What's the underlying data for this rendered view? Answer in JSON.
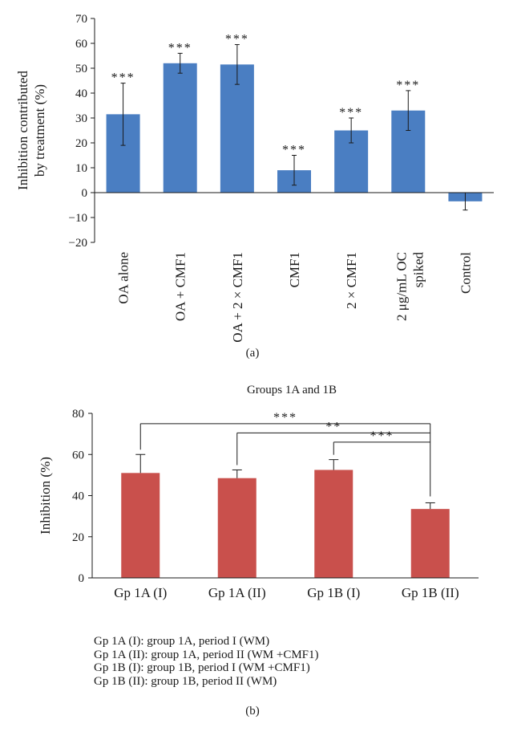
{
  "chart_data": [
    {
      "type": "bar",
      "panel_label": "(a)",
      "ylabel_lines": [
        "Inhibition contributed",
        "by treatment (%)"
      ],
      "ylim": [
        -20,
        70
      ],
      "yticks": [
        -20,
        -10,
        0,
        10,
        20,
        30,
        40,
        50,
        60,
        70
      ],
      "categories": [
        [
          "OA alone"
        ],
        [
          "OA + CMF1"
        ],
        [
          "OA + 2 × CMF1"
        ],
        [
          "CMF1"
        ],
        [
          "2 × CMF1"
        ],
        [
          "2 μg/mL OC",
          "spiked"
        ],
        [
          "Control"
        ]
      ],
      "values": [
        31.5,
        52,
        51.5,
        9,
        25,
        33,
        -3.5
      ],
      "errors": [
        12.5,
        4,
        8,
        6,
        5,
        8,
        3.5
      ],
      "significance": [
        "***",
        "***",
        "***",
        "***",
        "***",
        "***",
        ""
      ],
      "bar_color": "#4a7ec2",
      "grid": false
    },
    {
      "type": "bar",
      "panel_label": "(b)",
      "title": "Groups 1A and 1B",
      "ylabel": "Inhibition (%)",
      "ylim": [
        0,
        80
      ],
      "yticks": [
        0,
        20,
        40,
        60,
        80
      ],
      "categories": [
        "Gp 1A (I)",
        "Gp 1A (II)",
        "Gp 1B (I)",
        "Gp 1B (II)"
      ],
      "values": [
        51,
        48.5,
        52.5,
        33.5
      ],
      "errors": [
        9,
        4,
        5,
        3
      ],
      "comparisons": [
        {
          "from": 0,
          "to": 3,
          "label": "***"
        },
        {
          "from": 1,
          "to": 3,
          "label": "**"
        },
        {
          "from": 2,
          "to": 3,
          "label": "***"
        }
      ],
      "bar_color": "#c9504c",
      "grid": false
    }
  ],
  "legend_lines": [
    "Gp 1A (I): group 1A, period I (WM)",
    "Gp 1A (II): group 1A, period II (WM +CMF1)",
    "Gp 1B (I): group 1B, period I (WM +CMF1)",
    "Gp 1B (II): group 1B, period II (WM)"
  ],
  "text_colors": {
    "axis": "#1a1a1a"
  }
}
